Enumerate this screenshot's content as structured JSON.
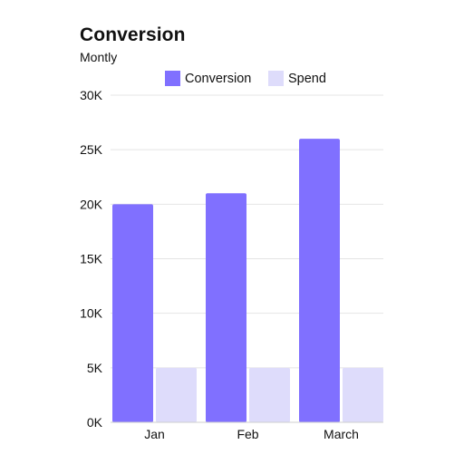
{
  "chart_data": {
    "type": "bar",
    "title": "Conversion",
    "subtitle": "Montly",
    "categories": [
      "Jan",
      "Feb",
      "March"
    ],
    "series": [
      {
        "name": "Conversion",
        "values": [
          20000,
          21000,
          26000
        ],
        "color": "#8070FF"
      },
      {
        "name": "Spend",
        "values": [
          5000,
          5000,
          5000
        ],
        "color": "#DEDCFB"
      }
    ],
    "xlabel": "",
    "ylabel": "",
    "ylim": [
      0,
      30000
    ],
    "yticks": [
      {
        "value": 0,
        "label": "0K"
      },
      {
        "value": 5000,
        "label": "5K"
      },
      {
        "value": 10000,
        "label": "10K"
      },
      {
        "value": 15000,
        "label": "15K"
      },
      {
        "value": 20000,
        "label": "20K"
      },
      {
        "value": 25000,
        "label": "25K"
      },
      {
        "value": 30000,
        "label": "30K"
      }
    ],
    "grid": true,
    "legend_position": "top"
  }
}
